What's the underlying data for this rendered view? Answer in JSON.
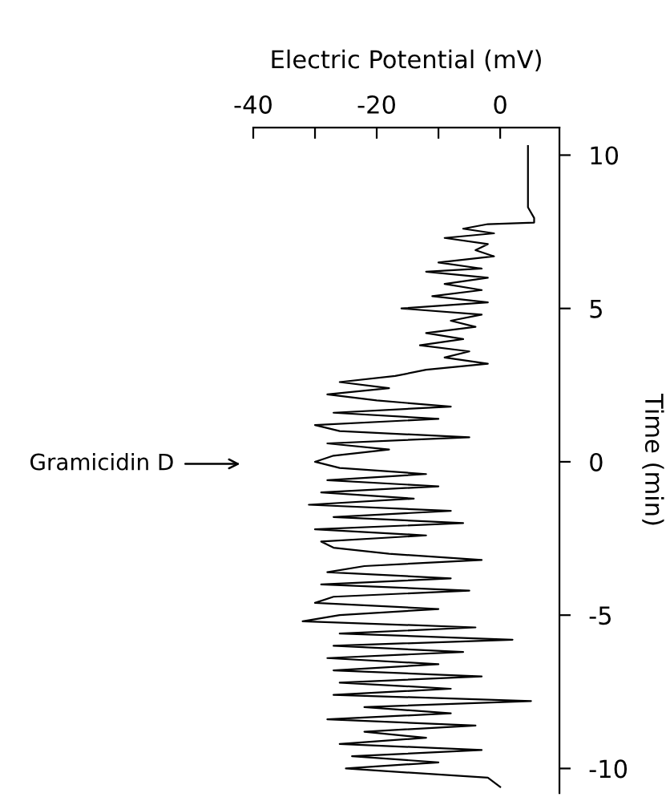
{
  "chart_data": {
    "type": "line",
    "orientation": "horizontal",
    "xlabel": "Electric Potential (mV)",
    "ylabel": "Time (min)",
    "xlim": [
      -40,
      9.6
    ],
    "xticks": [
      -40,
      {
        "value": -30,
        "label": null
      },
      -20,
      {
        "value": -10,
        "label": null
      },
      0
    ],
    "ylim": [
      -10.8,
      10.9
    ],
    "yticks": [
      10,
      5,
      0,
      -5,
      -10
    ],
    "grid": false,
    "marker": "none",
    "line_style": "solid",
    "annotations": [
      "Gramicidin D"
    ],
    "series": [
      {
        "color": "#000000",
        "x": [
          10.3,
          8.3,
          7.95,
          7.8,
          7.75,
          7.6,
          7.45,
          7.3,
          7.1,
          6.9,
          6.7,
          6.5,
          6.3,
          6.2,
          6.0,
          5.8,
          5.6,
          5.4,
          5.2,
          5.0,
          4.8,
          4.6,
          4.4,
          4.2,
          4.0,
          3.8,
          3.6,
          3.4,
          3.2,
          3.0,
          2.8,
          2.6,
          2.4,
          2.2,
          2.0,
          1.8,
          1.6,
          1.4,
          1.2,
          1.0,
          0.8,
          0.6,
          0.4,
          0.2,
          0.0,
          -0.2,
          -0.4,
          -0.6,
          -0.8,
          -1.0,
          -1.2,
          -1.4,
          -1.6,
          -1.8,
          -2.0,
          -2.2,
          -2.4,
          -2.6,
          -2.8,
          -3.0,
          -3.2,
          -3.4,
          -3.6,
          -3.8,
          -4.0,
          -4.2,
          -4.4,
          -4.6,
          -4.8,
          -5.0,
          -5.2,
          -5.4,
          -5.6,
          -5.8,
          -6.0,
          -6.2,
          -6.4,
          -6.6,
          -6.8,
          -7.0,
          -7.2,
          -7.4,
          -7.6,
          -7.8,
          -8.0,
          -8.2,
          -8.4,
          -8.6,
          -8.8,
          -9.0,
          -9.2,
          -9.4,
          -9.6,
          -9.8,
          -10.0,
          -10.3,
          -10.6
        ],
        "values": [
          4.5,
          4.5,
          5.5,
          5.5,
          -2,
          -6,
          -1,
          -9,
          -2,
          -4,
          -1,
          -10,
          -3,
          -12,
          -2,
          -9,
          -3,
          -11,
          -2,
          -16,
          -3,
          -8,
          -4,
          -12,
          -6,
          -13,
          -5,
          -9,
          -2,
          -12,
          -17,
          -26,
          -18,
          -28,
          -20,
          -8,
          -27,
          -10,
          -30,
          -26,
          -5,
          -28,
          -18,
          -27,
          -30,
          -26,
          -12,
          -28,
          -10,
          -29,
          -14,
          -31,
          -8,
          -27,
          -6,
          -30,
          -12,
          -29,
          -27,
          -18,
          -3,
          -22,
          -28,
          -8,
          -29,
          -5,
          -27,
          -30,
          -10,
          -26,
          -32,
          -4,
          -26,
          2,
          -27,
          -6,
          -28,
          -10,
          -27,
          -3,
          -26,
          -8,
          -27,
          5,
          -22,
          -8,
          -28,
          -4,
          -22,
          -12,
          -26,
          -3,
          -24,
          -10,
          -25,
          -2,
          0
        ]
      }
    ]
  }
}
